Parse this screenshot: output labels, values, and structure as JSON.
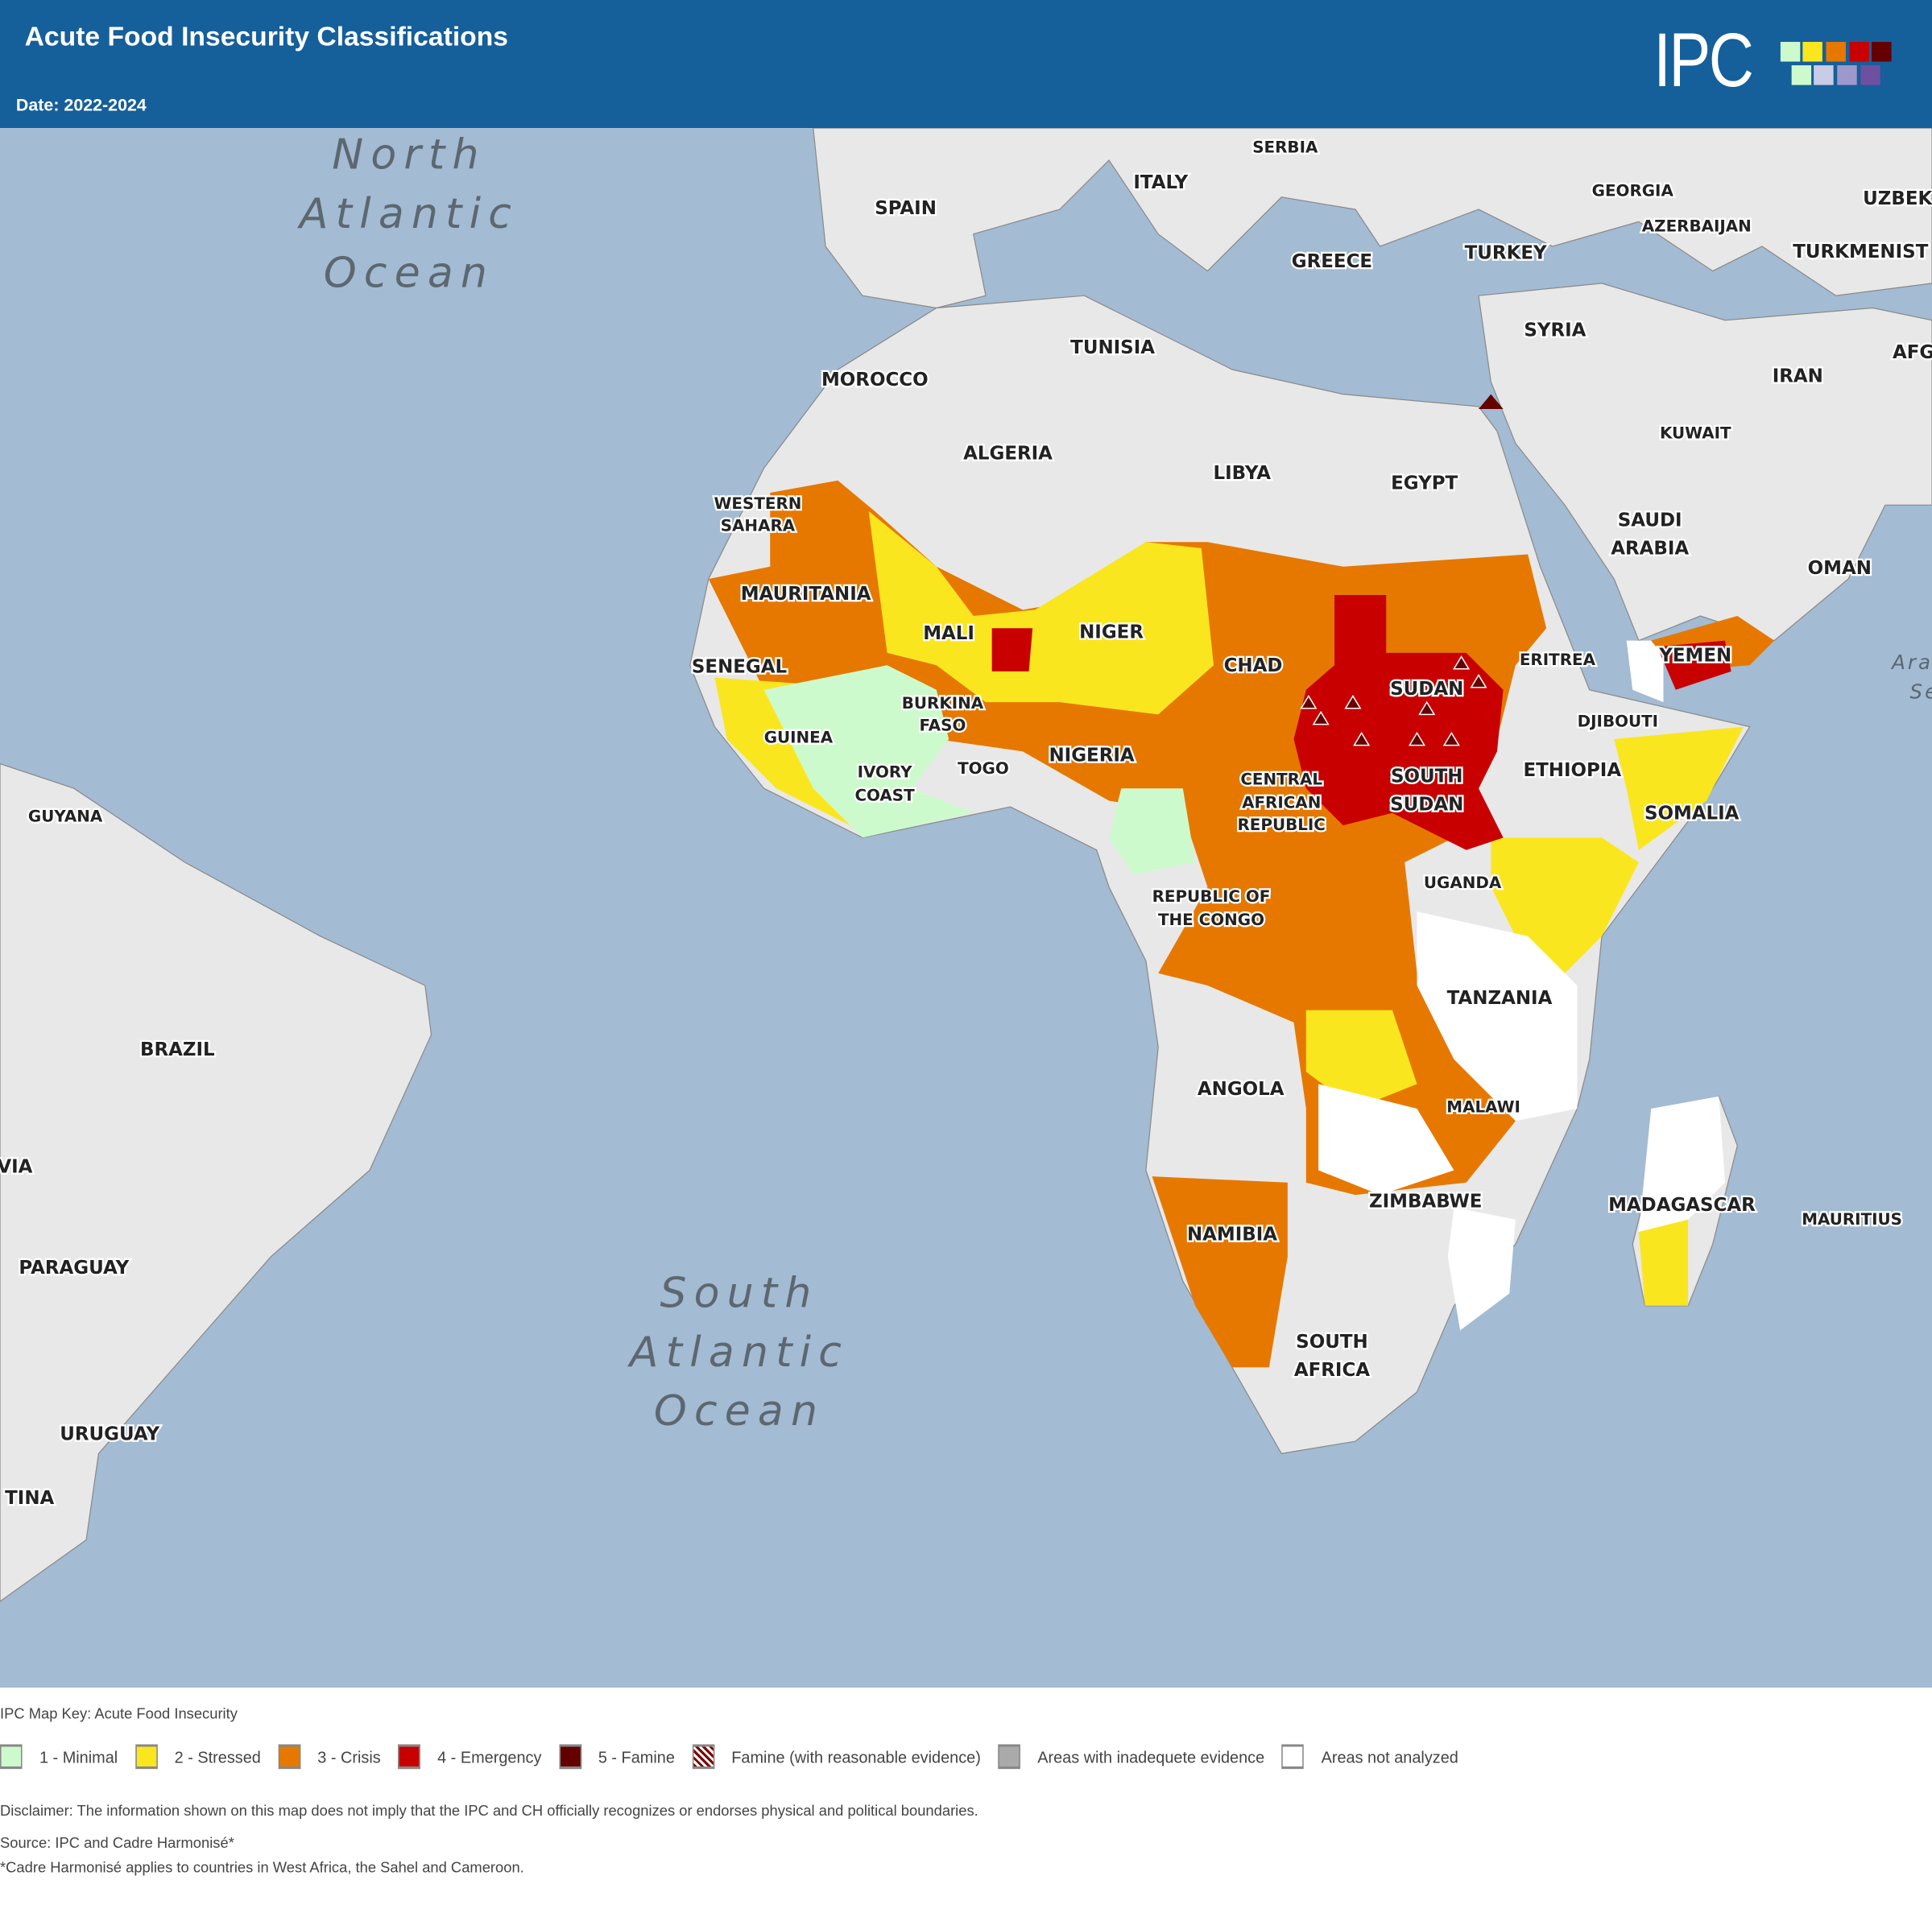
{
  "header": {
    "title": "Acute Food Insecurity Classifications",
    "date": "Date: 2022-2024",
    "logo_text": "IPC"
  },
  "colors": {
    "header_bg": "#155f9a",
    "ocean": "#a3bbd3",
    "land": "#e8e8e8",
    "phase1": "#cdfacd",
    "phase2": "#fae61e",
    "phase3": "#e67800",
    "phase4": "#c80000",
    "phase5": "#640000",
    "inadequate": "#aaaaaa",
    "not_analyzed": "#ffffff"
  },
  "map": {
    "oceans": {
      "north_atlantic": [
        "North",
        "Atlantic",
        "Ocean"
      ],
      "south_atlantic": [
        "South",
        "Atlantic",
        "Ocean"
      ],
      "arabian_sea": [
        "Ara",
        "Se"
      ]
    },
    "labels": {
      "spain": "SPAIN",
      "italy": "ITALY",
      "serbia": "SERBIA",
      "greece": "GREECE",
      "turkey": "TURKEY",
      "georgia": "GEORGIA",
      "azerbaijan": "AZERBAIJAN",
      "uzbekistan": "UZBEK",
      "turkmenistan": "TURKMENIST",
      "syria": "SYRIA",
      "iran": "IRAN",
      "afghanistan": "AFG",
      "kuwait": "KUWAIT",
      "tunisia": "TUNISIA",
      "morocco": "MOROCCO",
      "algeria": "ALGERIA",
      "libya": "LIBYA",
      "egypt": "EGYPT",
      "saudi_arabia_1": "SAUDI",
      "saudi_arabia_2": "ARABIA",
      "oman": "OMAN",
      "western_sahara_1": "WESTERN",
      "western_sahara_2": "SAHARA",
      "mauritania": "MAURITANIA",
      "mali": "MALI",
      "niger": "NIGER",
      "chad": "CHAD",
      "sudan": "SUDAN",
      "eritrea": "ERITREA",
      "yemen": "YEMEN",
      "senegal": "SENEGAL",
      "burkina_1": "BURKINA",
      "burkina_2": "FASO",
      "djibouti": "DJIBOUTI",
      "guinea": "GUINEA",
      "ivory_1": "IVORY",
      "ivory_2": "COAST",
      "togo": "TOGO",
      "nigeria": "NIGERIA",
      "car_1": "CENTRAL",
      "car_2": "AFRICAN",
      "car_3": "REPUBLIC",
      "south_sudan_1": "SOUTH",
      "south_sudan_2": "SUDAN",
      "ethiopia": "ETHIOPIA",
      "somalia": "SOMALIA",
      "guyana": "GUYANA",
      "uganda": "UGANDA",
      "congo_1": "REPUBLIC OF",
      "congo_2": "THE CONGO",
      "brazil": "BRAZIL",
      "tanzania": "TANZANIA",
      "angola": "ANGOLA",
      "malawi": "MALAWI",
      "bolivia": "VIA",
      "zimbabwe": "ZIMBABWE",
      "madagascar": "MADAGASCAR",
      "mauritius": "MAURITIUS",
      "namibia": "NAMIBIA",
      "paraguay": "PARAGUAY",
      "south_africa_1": "SOUTH",
      "south_africa_2": "AFRICA",
      "uruguay": "URUGUAY",
      "argentina": "TINA"
    }
  },
  "legend": {
    "title": "IPC Map Key: Acute Food Insecurity",
    "items": [
      {
        "label": "1 - Minimal",
        "color": "#cdfacd"
      },
      {
        "label": "2 - Stressed",
        "color": "#fae61e"
      },
      {
        "label": "3 - Crisis",
        "color": "#e67800"
      },
      {
        "label": "4 - Emergency",
        "color": "#c80000"
      },
      {
        "label": "5 - Famine",
        "color": "#640000"
      },
      {
        "label": "Famine (with reasonable evidence)",
        "color": "hatched"
      },
      {
        "label": "Areas with inadequete evidence",
        "color": "#aaaaaa"
      },
      {
        "label": "Areas not analyzed",
        "color": "#ffffff"
      }
    ]
  },
  "footer": {
    "disclaimer": "Disclaimer: The information shown on this map does not imply that the IPC and CH officially recognizes or endorses physical and political boundaries.",
    "source": "Source: IPC and Cadre Harmonisé*",
    "note": "*Cadre Harmonisé applies to countries in West Africa, the Sahel and Cameroon."
  }
}
